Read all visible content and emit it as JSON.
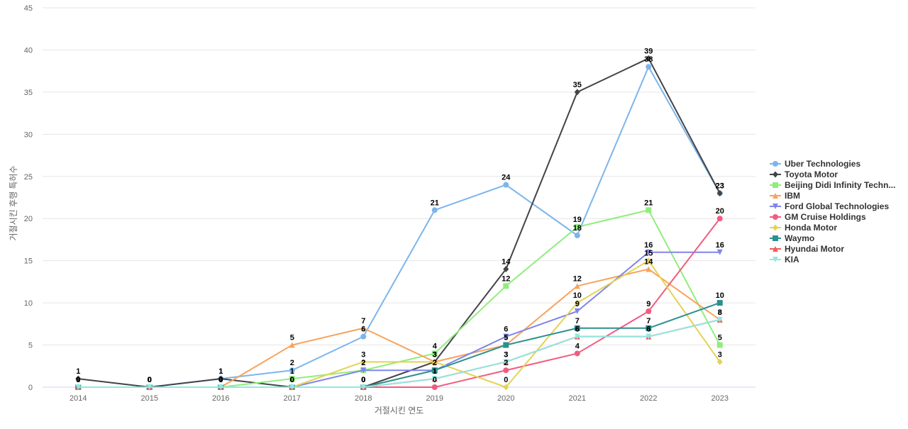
{
  "chart_data": {
    "type": "line",
    "title": "",
    "xlabel": "거절시킨 연도",
    "ylabel": "거절시킨 후행 특허수",
    "ylim": [
      0,
      45
    ],
    "yticks": [
      0,
      5,
      10,
      15,
      20,
      25,
      30,
      35,
      40,
      45
    ],
    "grid": true,
    "legend_position": "right",
    "categories": [
      "2014",
      "2015",
      "2016",
      "2017",
      "2018",
      "2019",
      "2020",
      "2021",
      "2022",
      "2023"
    ],
    "series": [
      {
        "name": "Uber Technologies",
        "color": "#7cb5ec",
        "marker": "circle",
        "values": [
          0,
          0,
          1,
          2,
          6,
          21,
          24,
          18,
          38,
          23
        ]
      },
      {
        "name": "Toyota Motor",
        "color": "#434348",
        "marker": "diamond",
        "values": [
          1,
          0,
          1,
          0,
          0,
          3,
          14,
          35,
          39,
          23
        ]
      },
      {
        "name": "Beijing Didi Infinity Techn...",
        "color": "#90ed7d",
        "marker": "square",
        "values": [
          0,
          0,
          0,
          1,
          2,
          4,
          12,
          19,
          21,
          5
        ]
      },
      {
        "name": "IBM",
        "color": "#f7a35c",
        "marker": "triangle",
        "values": [
          0,
          0,
          0,
          5,
          7,
          3,
          5,
          12,
          14,
          8
        ]
      },
      {
        "name": "Ford Global Technologies",
        "color": "#8085e9",
        "marker": "triangle-down",
        "values": [
          0,
          0,
          0,
          0,
          2,
          2,
          6,
          9,
          16,
          16
        ]
      },
      {
        "name": "GM Cruise Holdings",
        "color": "#f15c80",
        "marker": "circle",
        "values": [
          0,
          0,
          0,
          0,
          0,
          0,
          2,
          4,
          9,
          20
        ]
      },
      {
        "name": "Honda Motor",
        "color": "#e4d354",
        "marker": "diamond",
        "values": [
          0,
          0,
          0,
          0,
          3,
          3,
          0,
          10,
          15,
          3
        ]
      },
      {
        "name": "Waymo",
        "color": "#2b908f",
        "marker": "square",
        "values": [
          0,
          0,
          0,
          0,
          0,
          2,
          5,
          7,
          7,
          10
        ]
      },
      {
        "name": "Hyundai Motor",
        "color": "#f45b5b",
        "marker": "triangle",
        "values": [
          0,
          0,
          0,
          0,
          0,
          1,
          3,
          6,
          6,
          8
        ]
      },
      {
        "name": "KIA",
        "color": "#91e8e1",
        "marker": "triangle-down",
        "values": [
          0,
          0,
          0,
          0,
          0,
          1,
          3,
          6,
          6,
          8
        ]
      }
    ]
  }
}
